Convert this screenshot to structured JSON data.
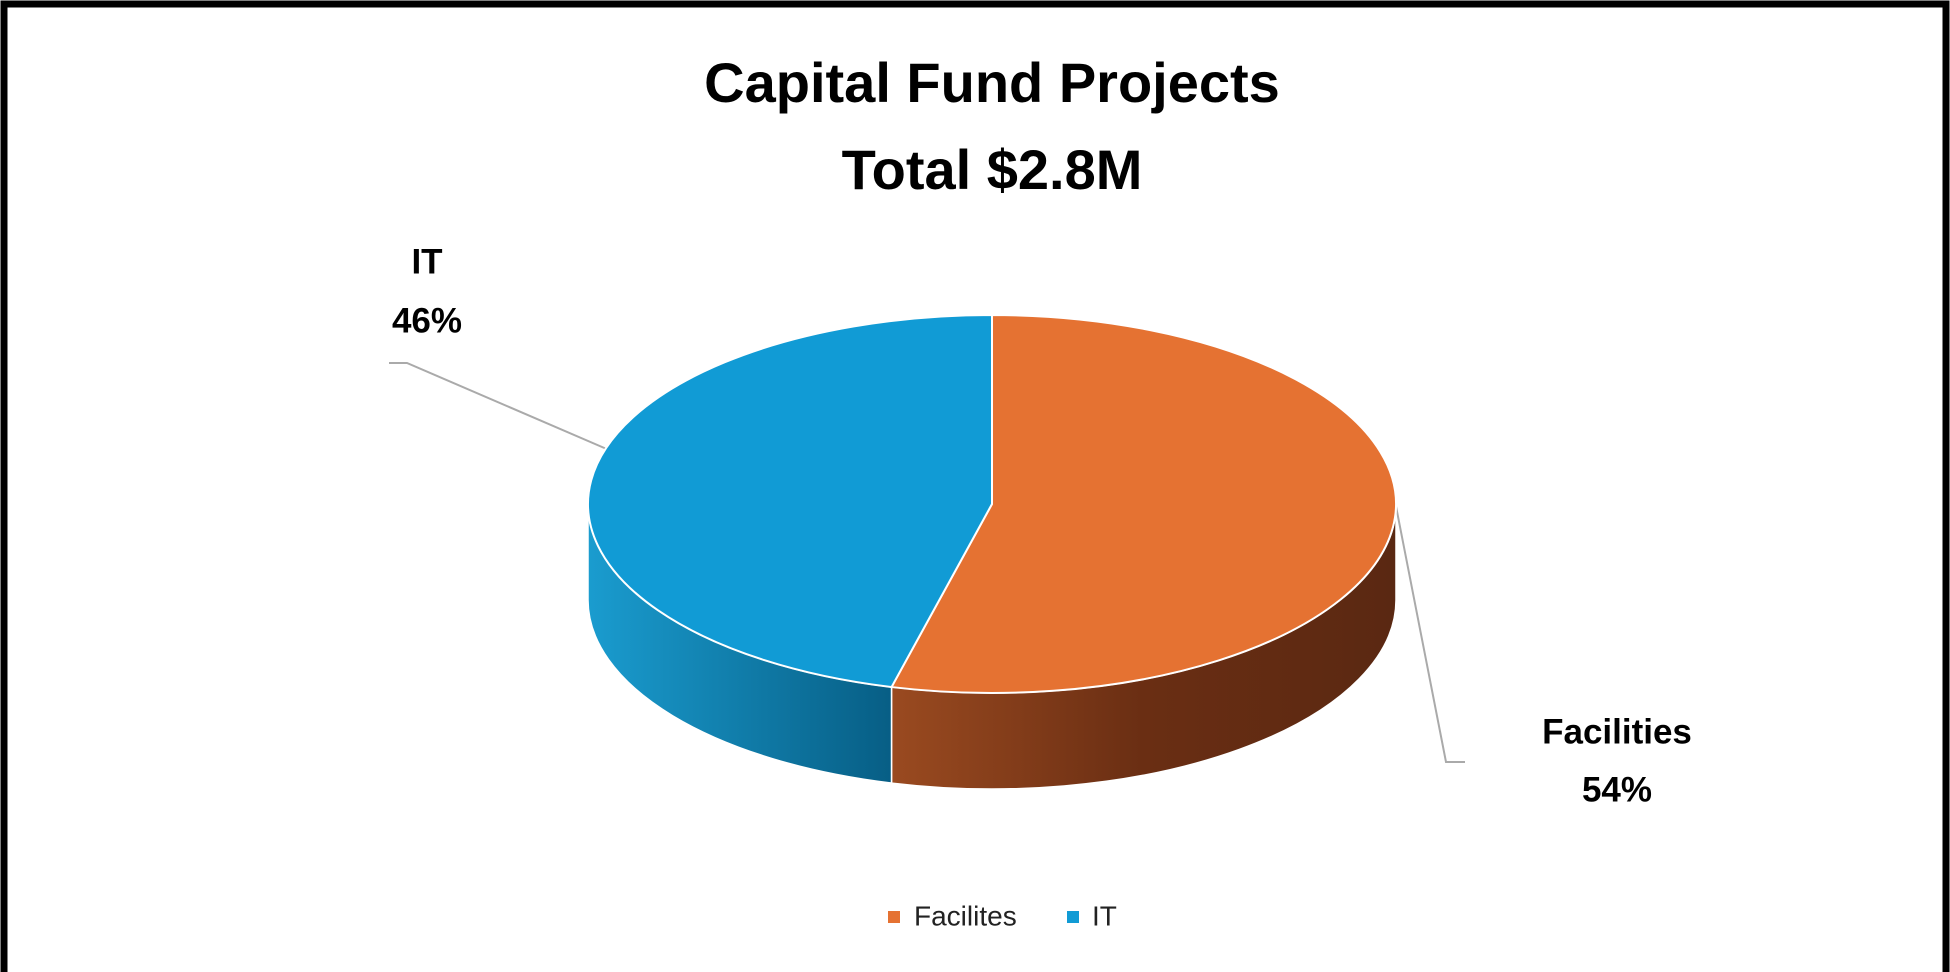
{
  "chart_data": {
    "type": "pie3d",
    "title": [
      "Capital Fund Projects",
      "Total $2.8M"
    ],
    "categories": [
      "Facilites",
      "IT"
    ],
    "data_label_names": [
      "Facilities",
      "IT"
    ],
    "values": [
      54,
      46
    ],
    "value_labels": [
      "54%",
      "46%"
    ],
    "colors": [
      "#e57232",
      "#119bd5"
    ],
    "side_colors": [
      "#6a2e13",
      "#0a6b96"
    ],
    "legend": "bottom"
  }
}
